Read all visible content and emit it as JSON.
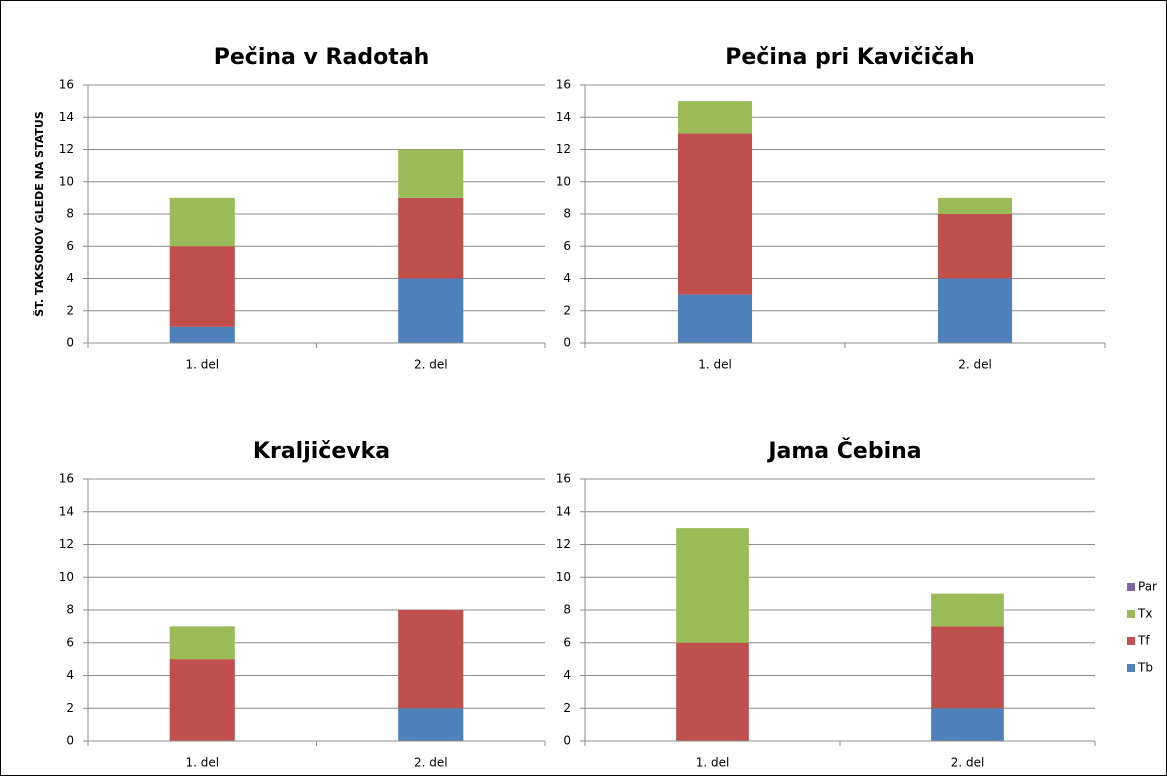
{
  "chart_data": [
    {
      "type": "bar",
      "stacked": true,
      "title": "Pečina v Radotah",
      "ylabel": "ŠT. TAKSONOV GLEDE NA STATUS",
      "categories": [
        "1. del",
        "2. del"
      ],
      "series": [
        {
          "name": "Tb",
          "color": "#4f81bd",
          "values": [
            1,
            4
          ]
        },
        {
          "name": "Tf",
          "color": "#c0504d",
          "values": [
            5,
            5
          ]
        },
        {
          "name": "Tx",
          "color": "#9bbb59",
          "values": [
            3,
            3
          ]
        },
        {
          "name": "Par",
          "color": "#8064a2",
          "values": [
            0,
            0
          ]
        }
      ],
      "ylim": [
        0,
        16
      ],
      "yticks": [
        0,
        2,
        4,
        6,
        8,
        10,
        12,
        14,
        16
      ],
      "grid": true
    },
    {
      "type": "bar",
      "stacked": true,
      "title": "Pečina pri Kavičičah",
      "categories": [
        "1. del",
        "2. del"
      ],
      "series": [
        {
          "name": "Tb",
          "color": "#4f81bd",
          "values": [
            3,
            4
          ]
        },
        {
          "name": "Tf",
          "color": "#c0504d",
          "values": [
            10,
            4
          ]
        },
        {
          "name": "Tx",
          "color": "#9bbb59",
          "values": [
            2,
            1
          ]
        },
        {
          "name": "Par",
          "color": "#8064a2",
          "values": [
            0,
            0
          ]
        }
      ],
      "ylim": [
        0,
        16
      ],
      "yticks": [
        0,
        2,
        4,
        6,
        8,
        10,
        12,
        14,
        16
      ],
      "grid": true
    },
    {
      "type": "bar",
      "stacked": true,
      "title": "Kraljičevka",
      "categories": [
        "1. del",
        "2. del"
      ],
      "series": [
        {
          "name": "Tb",
          "color": "#4f81bd",
          "values": [
            0,
            2
          ]
        },
        {
          "name": "Tf",
          "color": "#c0504d",
          "values": [
            5,
            6
          ]
        },
        {
          "name": "Tx",
          "color": "#9bbb59",
          "values": [
            2,
            0
          ]
        },
        {
          "name": "Par",
          "color": "#8064a2",
          "values": [
            0,
            0
          ]
        }
      ],
      "ylim": [
        0,
        16
      ],
      "yticks": [
        0,
        2,
        4,
        6,
        8,
        10,
        12,
        14,
        16
      ],
      "grid": true
    },
    {
      "type": "bar",
      "stacked": true,
      "title": "Jama Čebina",
      "categories": [
        "1. del",
        "2. del"
      ],
      "series": [
        {
          "name": "Tb",
          "color": "#4f81bd",
          "values": [
            0,
            2
          ]
        },
        {
          "name": "Tf",
          "color": "#c0504d",
          "values": [
            6,
            5
          ]
        },
        {
          "name": "Tx",
          "color": "#9bbb59",
          "values": [
            7,
            2
          ]
        },
        {
          "name": "Par",
          "color": "#8064a2",
          "values": [
            0,
            0
          ]
        }
      ],
      "ylim": [
        0,
        16
      ],
      "yticks": [
        0,
        2,
        4,
        6,
        8,
        10,
        12,
        14,
        16
      ],
      "grid": true,
      "legend": "right"
    }
  ]
}
